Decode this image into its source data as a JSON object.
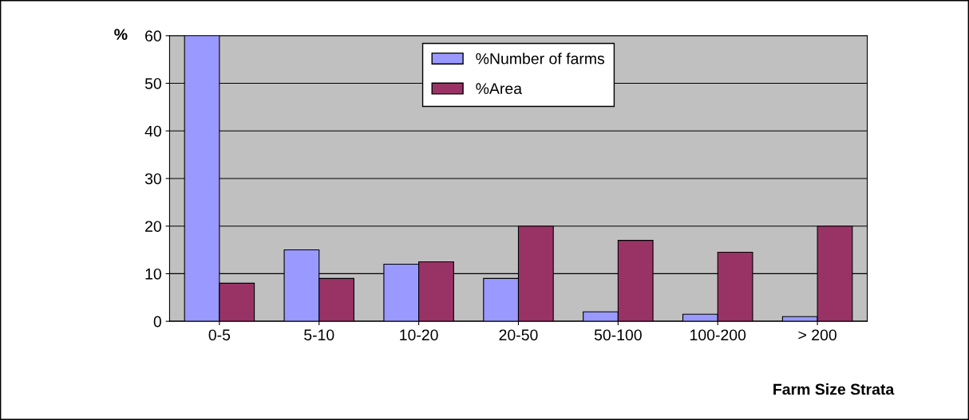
{
  "chart_data": {
    "type": "bar",
    "ylabel": "%",
    "xlabel": "Farm Size Strata",
    "categories": [
      "0-5",
      "5-10",
      "10-20",
      "20-50",
      "50-100",
      "100-200",
      "> 200"
    ],
    "series": [
      {
        "name": "%Number of farms",
        "color": "#9999ff",
        "values": [
          60,
          15,
          12,
          9,
          2,
          1.5,
          1
        ]
      },
      {
        "name": "%Area",
        "color": "#993366",
        "values": [
          8,
          9,
          12.5,
          20,
          17,
          14.5,
          20
        ]
      }
    ],
    "ylim": [
      0,
      60
    ],
    "yticks": [
      0,
      10,
      20,
      30,
      40,
      50,
      60
    ],
    "grid": "y",
    "legend": "top"
  }
}
